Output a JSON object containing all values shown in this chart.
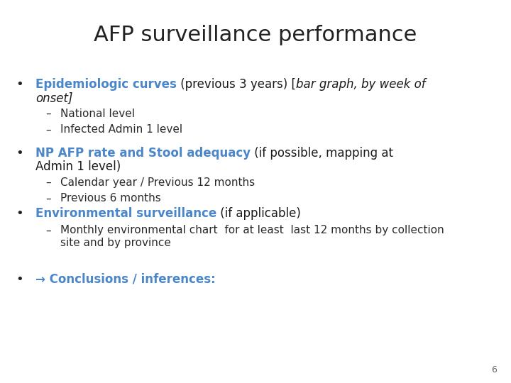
{
  "title": "AFP surveillance performance",
  "title_fontsize": 22,
  "title_color": "#222222",
  "background_color": "#ffffff",
  "bullet_color": "#222222",
  "highlight_color": "#4a86c8",
  "body_color": "#1a1a1a",
  "sub_color": "#2a2a2a",
  "page_number": "6",
  "content": [
    {
      "type": "bullet",
      "segments": [
        {
          "text": "Epidemiologic curves",
          "color": "#4a86c8",
          "bold": true,
          "italic": false
        },
        {
          "text": " (previous 3 years) [",
          "color": "#1a1a1a",
          "bold": false,
          "italic": false
        },
        {
          "text": "bar graph, by week of",
          "color": "#1a1a1a",
          "bold": false,
          "italic": true
        }
      ],
      "line2": {
        "text": "onset]",
        "color": "#1a1a1a",
        "bold": false,
        "italic": true
      },
      "subs": [
        "National level",
        "Infected Admin 1 level"
      ]
    },
    {
      "type": "bullet",
      "segments": [
        {
          "text": "NP AFP rate and Stool adequacy",
          "color": "#4a86c8",
          "bold": true,
          "italic": false
        },
        {
          "text": " (if possible, mapping at",
          "color": "#1a1a1a",
          "bold": false,
          "italic": false
        }
      ],
      "line2": {
        "text": "Admin 1 level)",
        "color": "#1a1a1a",
        "bold": false,
        "italic": false
      },
      "subs": [
        "Calendar year / Previous 12 months",
        "Previous 6 months"
      ]
    },
    {
      "type": "bullet",
      "segments": [
        {
          "text": "Environmental surveillance",
          "color": "#4a86c8",
          "bold": true,
          "italic": false
        },
        {
          "text": " (if applicable)",
          "color": "#1a1a1a",
          "bold": false,
          "italic": false
        }
      ],
      "line2": null,
      "subs": [
        "Monthly environmental chart  for at least  last 12 months by collection\nsite and by province"
      ]
    },
    {
      "type": "bullet",
      "segments": [
        {
          "text": "→ Conclusions / inferences:",
          "color": "#4a86c8",
          "bold": true,
          "italic": false
        }
      ],
      "line2": null,
      "subs": []
    }
  ]
}
